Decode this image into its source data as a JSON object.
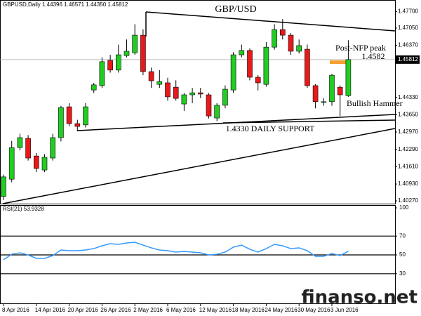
{
  "watermark": "finanso.net",
  "chart_data": [
    {
      "type": "candlestick",
      "title": "GBP/USD",
      "header": "GBPUSD,Daily 1.44396 1.46571 1.44350 1.45812",
      "categories": [
        "8 Apr 2016",
        null,
        null,
        null,
        "14 Apr 2016",
        null,
        null,
        null,
        "20 Apr 2016",
        null,
        null,
        null,
        "26 Apr 2016",
        null,
        null,
        null,
        "2 May 2016",
        null,
        null,
        null,
        "6 May 2016",
        null,
        null,
        null,
        "12 May 2016",
        null,
        null,
        null,
        "18 May 2016",
        null,
        null,
        null,
        "24 May 2016",
        null,
        null,
        null,
        "30 May 2016",
        null,
        null,
        null,
        "3 Jun 2016",
        null,
        null
      ],
      "open": [
        1.4044,
        1.4112,
        1.4236,
        1.4272,
        1.4203,
        1.4148,
        1.4195,
        1.4275,
        1.4396,
        1.433,
        1.4325,
        1.4462,
        1.4479,
        1.4578,
        1.454,
        1.4597,
        1.4608,
        1.4677,
        1.4534,
        1.4484,
        1.449,
        1.4473,
        1.4407,
        1.4443,
        1.4451,
        1.4443,
        1.4352,
        1.4402,
        1.4462,
        1.46,
        1.4617,
        1.4512,
        1.4484,
        1.463,
        1.4699,
        1.4677,
        1.4614,
        1.4622,
        1.4479,
        1.4413,
        1.4416,
        1.4473,
        1.44396
      ],
      "high": [
        1.413,
        1.4262,
        1.429,
        1.4285,
        1.4215,
        1.421,
        1.429,
        1.44,
        1.441,
        1.4345,
        1.441,
        1.449,
        1.459,
        1.46,
        1.464,
        1.466,
        1.472,
        1.47,
        1.455,
        1.454,
        1.451,
        1.45,
        1.445,
        1.447,
        1.447,
        1.445,
        1.441,
        1.448,
        1.461,
        1.464,
        1.4625,
        1.452,
        1.465,
        1.472,
        1.474,
        1.4685,
        1.466,
        1.464,
        1.4485,
        1.443,
        1.4525,
        1.448,
        1.46571
      ],
      "low": [
        1.403,
        1.41,
        1.4225,
        1.4185,
        1.414,
        1.414,
        1.4185,
        1.426,
        1.432,
        1.43,
        1.4315,
        1.445,
        1.447,
        1.453,
        1.453,
        1.459,
        1.46,
        1.452,
        1.447,
        1.447,
        1.442,
        1.442,
        1.438,
        1.441,
        1.443,
        1.435,
        1.434,
        1.439,
        1.445,
        1.459,
        1.45,
        1.446,
        1.4475,
        1.462,
        1.466,
        1.46,
        1.4605,
        1.447,
        1.439,
        1.44,
        1.44,
        1.436,
        1.4435
      ],
      "close": [
        1.4121,
        1.4236,
        1.4275,
        1.4195,
        1.4154,
        1.4198,
        1.4275,
        1.4393,
        1.433,
        1.4319,
        1.4396,
        1.4482,
        1.4573,
        1.454,
        1.46,
        1.4614,
        1.4677,
        1.4534,
        1.4498,
        1.4495,
        1.4435,
        1.4429,
        1.4443,
        1.4451,
        1.4446,
        1.436,
        1.4402,
        1.4465,
        1.46,
        1.4617,
        1.4512,
        1.449,
        1.463,
        1.4699,
        1.4677,
        1.4614,
        1.4636,
        1.4479,
        1.4416,
        1.4416,
        1.452,
        1.4443,
        1.45812
      ],
      "up_color": "#22cc22",
      "down_color": "#e8191a",
      "ylim": [
        1.4016,
        1.4815
      ],
      "yticks": [
        {
          "value": 1.477,
          "label": "1.47700"
        },
        {
          "value": 1.4705,
          "label": "1.47050"
        },
        {
          "value": 1.4637,
          "label": "1.46370"
        },
        {
          "value": 1.4433,
          "label": "1.44330"
        },
        {
          "value": 1.4365,
          "label": "1.43650"
        },
        {
          "value": 1.4297,
          "label": "1.42970"
        },
        {
          "value": 1.4229,
          "label": "1.42290"
        },
        {
          "value": 1.4161,
          "label": "1.41610"
        },
        {
          "value": 1.4093,
          "label": "1.40930"
        },
        {
          "value": 1.4027,
          "label": "1.40270"
        }
      ],
      "last_price": 1.45812,
      "annotations": [
        "Post-NFP peak",
        "1.4582",
        "Bullish Hammer",
        "1.4330 DAILY SUPPORT"
      ]
    },
    {
      "type": "line",
      "title": "RSI(21) 53.9328",
      "color": "#3399ff",
      "values": [
        44.8,
        50.7,
        52.2,
        50.0,
        46.3,
        46.3,
        49.3,
        55.2,
        54.5,
        54.5,
        55.2,
        56.7,
        59.7,
        61.9,
        61.2,
        62.7,
        63.4,
        60.4,
        57.5,
        55.2,
        54.5,
        53.0,
        53.7,
        53.0,
        52.2,
        50.0,
        50.7,
        53.0,
        58.2,
        60.4,
        56.0,
        53.0,
        56.7,
        61.2,
        59.7,
        56.7,
        57.5,
        54.5,
        48.5,
        48.5,
        51.5,
        49.3,
        53.9
      ],
      "ylim": [
        0,
        100
      ],
      "yticks": [
        100,
        70,
        50,
        30
      ],
      "levels": [
        70,
        50,
        30
      ]
    }
  ]
}
